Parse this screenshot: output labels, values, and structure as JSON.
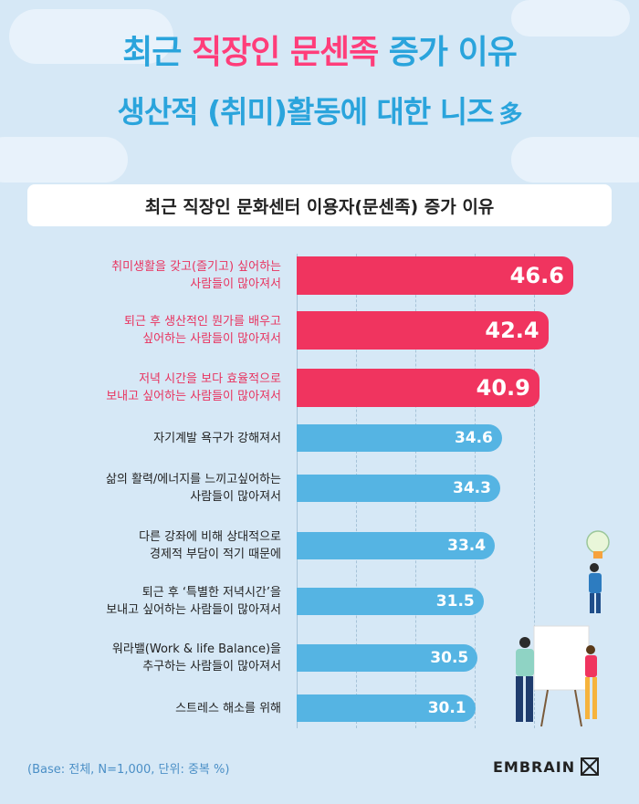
{
  "header": {
    "title_part1": "최근",
    "title_highlight": "직장인 문센족",
    "title_part2": "증가 이유",
    "line2_main": "생산적 (취미)활동에 대한 니즈",
    "line2_suffix": "多"
  },
  "colors": {
    "pink": "#f0345f",
    "blue": "#55b4e3",
    "title_blue": "#2aa4dc",
    "background": "#d6e8f6"
  },
  "chart_data": {
    "type": "bar",
    "orientation": "horizontal",
    "title": "최근 직장인 문화센터 이용자(문센족) 증가 이유",
    "categories": [
      "취미생활을 갖고(즐기고) 싶어하는 사람들이 많아져서",
      "퇴근 후 생산적인 뭔가를 배우고 싶어하는 사람들이 많아져서",
      "저녁 시간을 보다 효율적으로 보내고 싶어하는 사람들이 많아져서",
      "자기계발 욕구가 강해져서",
      "삶의 활력/에너지를 느끼고싶어하는 사람들이 많아져서",
      "다른 강좌에 비해 상대적으로 경제적 부담이 적기 때문에",
      "퇴근 후 ‘특별한 저녁시간’을 보내고 싶어하는 사람들이 많아져서",
      "워라밸(Work & life Balance)을 추구하는 사람들이 많아져서",
      "스트레스 해소를 위해"
    ],
    "label_lines": [
      [
        "취미생활을 갖고(즐기고) 싶어하는",
        "사람들이 많아져서"
      ],
      [
        "퇴근 후 생산적인 뭔가를 배우고",
        "싶어하는 사람들이 많아져서"
      ],
      [
        "저녁 시간을 보다 효율적으로",
        "보내고 싶어하는 사람들이 많아져서"
      ],
      [
        "자기계발 욕구가 강해져서"
      ],
      [
        "삶의 활력/에너지를 느끼고싶어하는",
        "사람들이 많아져서"
      ],
      [
        "다른 강좌에 비해 상대적으로",
        "경제적 부담이 적기 때문에"
      ],
      [
        "퇴근 후 ‘특별한 저녁시간’을",
        "보내고 싶어하는 사람들이 많아져서"
      ],
      [
        "워라밸(Work & life Balance)을",
        "추구하는 사람들이 많아져서"
      ],
      [
        "스트레스 해소를 위해"
      ]
    ],
    "values": [
      46.6,
      42.4,
      40.9,
      34.6,
      34.3,
      33.4,
      31.5,
      30.5,
      30.1
    ],
    "value_labels": [
      "46.6",
      "42.4",
      "40.9",
      "34.6",
      "34.3",
      "33.4",
      "31.5",
      "30.5",
      "30.1"
    ],
    "highlight_top_n": 3,
    "xlim": [
      0,
      50
    ],
    "grid": true,
    "unit": "%"
  },
  "footer": {
    "note": "(Base: 전체, N=1,000, 단위: 중복 %)",
    "brand": "EMBRAIN"
  }
}
